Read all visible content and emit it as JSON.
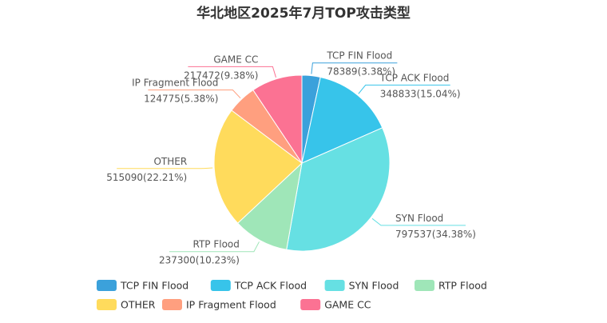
{
  "chart_data": {
    "type": "pie",
    "title": "华北地区2025年7月TOP攻击类型",
    "legend_position": "bottom",
    "slices": [
      {
        "name": "TCP FIN Flood",
        "value": 78389,
        "percent_label": "78389(3.38%)",
        "color": "#3ba1db"
      },
      {
        "name": "TCP ACK Flood",
        "value": 348833,
        "percent_label": "348833(15.04%)",
        "color": "#37c4ea"
      },
      {
        "name": "SYN Flood",
        "value": 797537,
        "percent_label": "797537(34.38%)",
        "color": "#66e0e3"
      },
      {
        "name": "RTP Flood",
        "value": 237300,
        "percent_label": "237300(10.23%)",
        "color": "#9fe6b8"
      },
      {
        "name": "OTHER",
        "value": 515090,
        "percent_label": "515090(22.21%)",
        "color": "#ffdb5c"
      },
      {
        "name": "IP Fragment Flood",
        "value": 124775,
        "percent_label": "124775(5.38%)",
        "color": "#ff9f7f"
      },
      {
        "name": "GAME CC",
        "value": 217472,
        "percent_label": "217472(9.38%)",
        "color": "#fb7293"
      }
    ]
  }
}
